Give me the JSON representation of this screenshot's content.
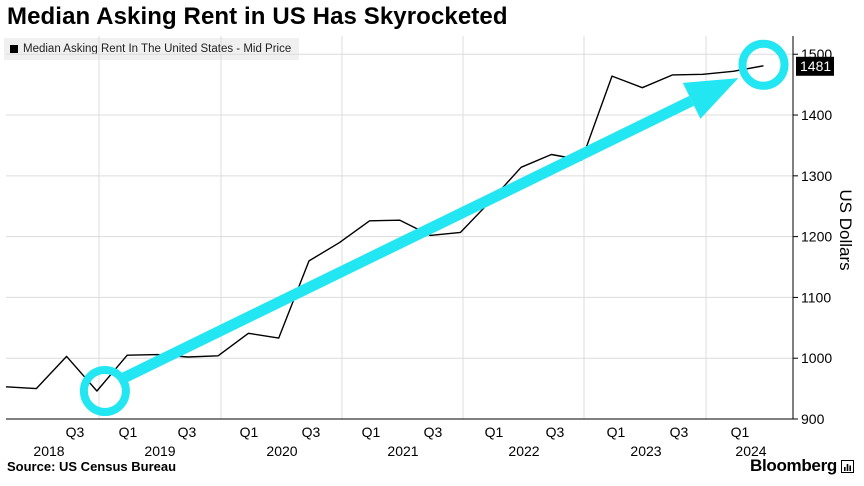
{
  "title": "Median Asking Rent in US Has Skyrocketed",
  "source": "Source: US Census Bureau",
  "brand": "Bloomberg",
  "colors": {
    "line": "#000000",
    "annotation": "#22e6f2",
    "grid": "#dcdcdc",
    "legend_bg": "#f0f0f0"
  },
  "icons": {
    "brand_mark": "bar-chart-icon"
  },
  "chart_data": {
    "type": "line",
    "title": "Median Asking Rent in US Has Skyrocketed",
    "ylabel": "US Dollars",
    "xlabel": "",
    "ylim": [
      900,
      1530
    ],
    "yticks": [
      900,
      1000,
      1100,
      1200,
      1300,
      1400,
      1500
    ],
    "grid": true,
    "legend_position": "top-left",
    "quarter_ticks": [
      "Q3",
      "Q1",
      "Q3",
      "Q1",
      "Q3",
      "Q1",
      "Q3",
      "Q1",
      "Q3",
      "Q1",
      "Q3",
      "Q1"
    ],
    "year_labels": [
      "2018",
      "2019",
      "2020",
      "2021",
      "2022",
      "2023",
      "2024"
    ],
    "series": [
      {
        "name": "Median Asking Rent In The United States - Mid Price",
        "x": [
          "2018 Q1",
          "2018 Q2",
          "2018 Q3",
          "2018 Q4",
          "2019 Q1",
          "2019 Q2",
          "2019 Q3",
          "2019 Q4",
          "2020 Q1",
          "2020 Q2",
          "2020 Q3",
          "2020 Q4",
          "2021 Q1",
          "2021 Q2",
          "2021 Q3",
          "2021 Q4",
          "2022 Q1",
          "2022 Q2",
          "2022 Q3",
          "2022 Q4",
          "2023 Q1",
          "2023 Q2",
          "2023 Q3",
          "2023 Q4",
          "2024 Q1",
          "2024 Q2"
        ],
        "values": [
          953,
          950,
          1003,
          946,
          1005,
          1006,
          1002,
          1004,
          1041,
          1033,
          1160,
          1190,
          1226,
          1227,
          1202,
          1207,
          1259,
          1314,
          1335,
          1326,
          1464,
          1445,
          1466,
          1467,
          1472,
          1481
        ]
      }
    ],
    "last_value_label": "1481",
    "annotations": [
      {
        "type": "arrow",
        "from": "2018 Q4",
        "to": "2024 Q2"
      }
    ]
  }
}
